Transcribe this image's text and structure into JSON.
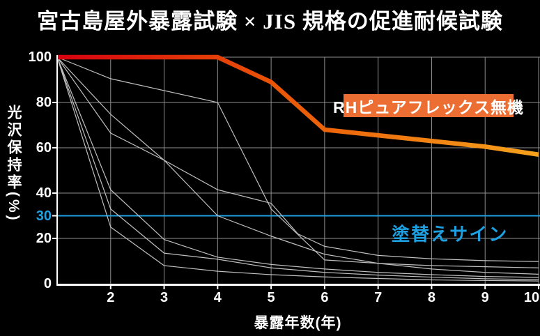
{
  "page_title": "宮古島屋外暴露試験 × JIS 規格の促進耐候試験",
  "colors": {
    "background": "#000000",
    "text": "#ffffff",
    "grid": "#909090",
    "axis": "#ffffff",
    "comparison_line": "#bfbfbf",
    "blue_accent": "#1e9fe0",
    "badge_background": "#ed6e33",
    "badge_text": "#ffffff",
    "highlight_gradient_start": "#d7000f",
    "highlight_gradient_mid": "#ea5506",
    "highlight_gradient_end": "#f6a21c"
  },
  "badge": {
    "label": "RHピュアフレックス無機"
  },
  "chart_data": {
    "type": "line",
    "title": "宮古島屋外暴露試験 × JIS 規格の促進耐候試験",
    "xlabel": "暴露年数(年)",
    "ylabel": "光沢保持率(%)",
    "xlim": [
      1,
      10
    ],
    "ylim": [
      0,
      100
    ],
    "x_ticks": [
      2,
      3,
      4,
      5,
      6,
      7,
      8,
      9,
      10
    ],
    "y_ticks": [
      100,
      80,
      60,
      40,
      30,
      20,
      0
    ],
    "y_tick_highlighted": 30,
    "grid": true,
    "legend_position": "inside-right",
    "threshold_line": {
      "value": 30,
      "label": "塗替えサイン"
    },
    "highlight_series": {
      "label": "RHピュアフレックス無機",
      "points": [
        [
          1,
          100
        ],
        [
          4,
          100
        ],
        [
          5,
          89
        ],
        [
          6,
          68
        ],
        [
          7,
          65.5
        ],
        [
          8,
          63
        ],
        [
          9,
          60.5
        ],
        [
          10,
          57
        ]
      ]
    },
    "comparison_series": [
      {
        "points": [
          [
            1,
            100
          ],
          [
            2,
            90.5
          ],
          [
            4,
            80
          ],
          [
            5,
            33
          ],
          [
            6,
            10.5
          ],
          [
            7,
            9
          ],
          [
            8,
            8
          ],
          [
            9,
            7.5
          ],
          [
            10,
            7
          ]
        ]
      },
      {
        "points": [
          [
            1,
            100
          ],
          [
            2,
            74.8
          ],
          [
            3,
            54.5
          ],
          [
            4,
            41.5
          ],
          [
            5,
            35.5
          ],
          [
            5.5,
            22
          ],
          [
            6,
            16.5
          ],
          [
            7,
            12.5
          ],
          [
            8,
            11
          ],
          [
            9,
            10.2
          ],
          [
            10,
            9.8
          ]
        ]
      },
      {
        "points": [
          [
            1,
            100
          ],
          [
            2,
            66.5
          ],
          [
            3,
            54.5
          ],
          [
            4,
            30
          ],
          [
            5,
            21
          ],
          [
            6,
            13
          ],
          [
            7,
            9
          ],
          [
            8,
            6.5
          ],
          [
            9,
            5
          ],
          [
            10,
            4.2
          ]
        ]
      },
      {
        "points": [
          [
            1,
            100
          ],
          [
            2,
            41.5
          ],
          [
            3,
            19.5
          ],
          [
            4,
            11.7
          ],
          [
            5,
            8.5
          ],
          [
            6,
            6.5
          ],
          [
            7,
            5
          ],
          [
            8,
            4
          ],
          [
            9,
            3.2
          ],
          [
            10,
            2.8
          ]
        ]
      },
      {
        "points": [
          [
            1,
            100
          ],
          [
            2,
            33
          ],
          [
            3,
            13.5
          ],
          [
            4,
            10.8
          ],
          [
            5,
            7
          ],
          [
            6,
            5
          ],
          [
            7,
            3.8
          ],
          [
            8,
            2.9
          ],
          [
            9,
            2.2
          ],
          [
            10,
            1.8
          ]
        ]
      },
      {
        "points": [
          [
            1,
            100
          ],
          [
            2,
            25
          ],
          [
            3,
            8
          ],
          [
            4,
            5.5
          ],
          [
            5,
            4
          ],
          [
            6,
            3
          ],
          [
            7,
            2.3
          ],
          [
            8,
            1.7
          ],
          [
            9,
            1.4
          ],
          [
            10,
            1.2
          ]
        ]
      }
    ]
  }
}
